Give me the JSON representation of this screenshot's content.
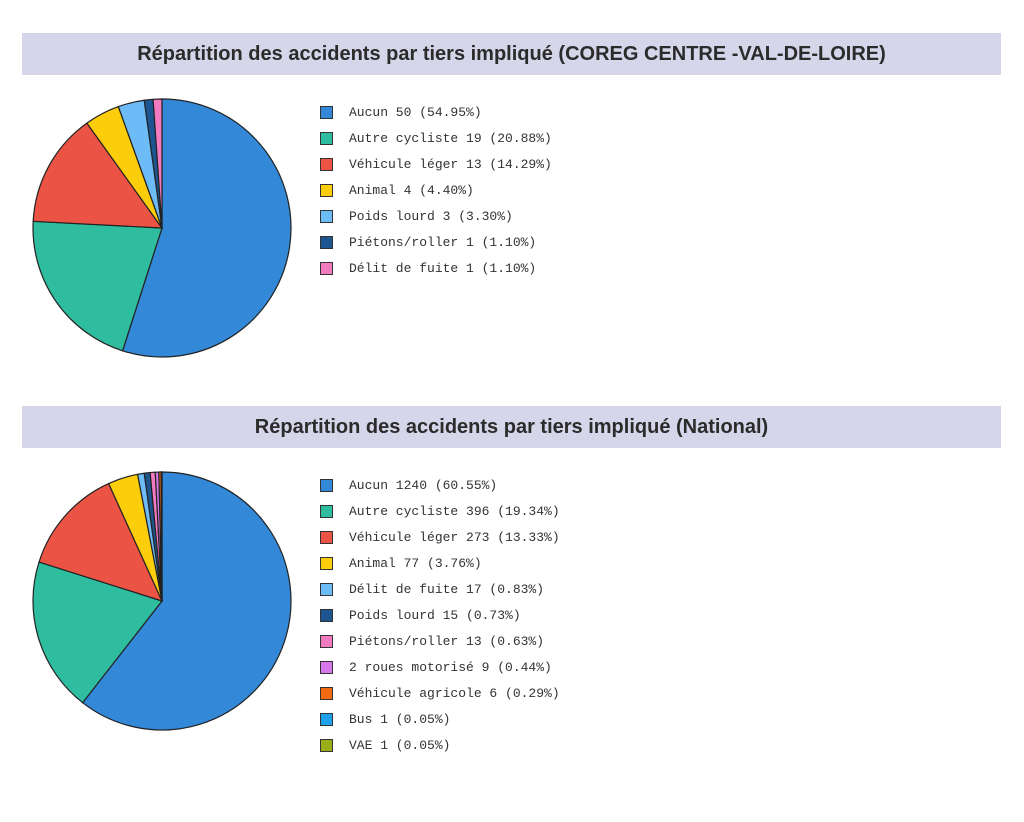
{
  "chart_data": [
    {
      "type": "pie",
      "title": "Répartition des accidents par tiers impliqué (COREG CENTRE -VAL-DE-LOIRE)",
      "legend_position": "right",
      "slices": [
        {
          "label": "Aucun 50 (54.95%)",
          "value": 50,
          "percent": 54.95,
          "color": "#3388d8"
        },
        {
          "label": "Autre cycliste 19 (20.88%)",
          "value": 19,
          "percent": 20.88,
          "color": "#2fbd9f"
        },
        {
          "label": "Véhicule léger 13 (14.29%)",
          "value": 13,
          "percent": 14.29,
          "color": "#eb5445"
        },
        {
          "label": "Animal 4 (4.40%)",
          "value": 4,
          "percent": 4.4,
          "color": "#fccd0a"
        },
        {
          "label": "Poids lourd 3 (3.30%)",
          "value": 3,
          "percent": 3.3,
          "color": "#6ebcf7"
        },
        {
          "label": "Piétons/roller 1 (1.10%)",
          "value": 1,
          "percent": 1.1,
          "color": "#1c5590"
        },
        {
          "label": "Délit de fuite 1 (1.10%)",
          "value": 1,
          "percent": 1.1,
          "color": "#f27bc0"
        }
      ]
    },
    {
      "type": "pie",
      "title": "Répartition des accidents par tiers impliqué (National)",
      "legend_position": "right",
      "slices": [
        {
          "label": "Aucun 1240 (60.55%)",
          "value": 1240,
          "percent": 60.55,
          "color": "#3388d8"
        },
        {
          "label": "Autre cycliste 396 (19.34%)",
          "value": 396,
          "percent": 19.34,
          "color": "#2fbd9f"
        },
        {
          "label": "Véhicule léger 273 (13.33%)",
          "value": 273,
          "percent": 13.33,
          "color": "#eb5445"
        },
        {
          "label": "Animal 77 (3.76%)",
          "value": 77,
          "percent": 3.76,
          "color": "#fccd0a"
        },
        {
          "label": "Délit de fuite 17 (0.83%)",
          "value": 17,
          "percent": 0.83,
          "color": "#6ebcf7"
        },
        {
          "label": "Poids lourd 15 (0.73%)",
          "value": 15,
          "percent": 0.73,
          "color": "#1c5590"
        },
        {
          "label": "Piétons/roller 13 (0.63%)",
          "value": 13,
          "percent": 0.63,
          "color": "#f27bc0"
        },
        {
          "label": "2 roues motorisé 9 (0.44%)",
          "value": 9,
          "percent": 0.44,
          "color": "#d678ea"
        },
        {
          "label": "Véhicule agricole 6 (0.29%)",
          "value": 6,
          "percent": 0.29,
          "color": "#f36b10"
        },
        {
          "label": "Bus 1 (0.05%)",
          "value": 1,
          "percent": 0.05,
          "color": "#1da1ea"
        },
        {
          "label": "VAE 1 (0.05%)",
          "value": 1,
          "percent": 0.05,
          "color": "#9aae1a"
        }
      ]
    }
  ]
}
